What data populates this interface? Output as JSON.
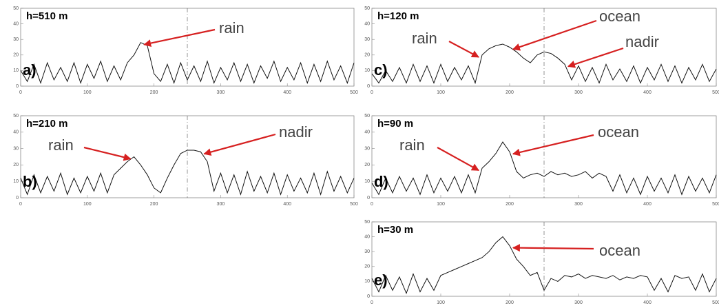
{
  "chart_data": [
    {
      "type": "line",
      "label": "h=510 m",
      "panel_label": "a)",
      "color": "#111",
      "xlim": [
        0,
        500
      ],
      "ylim": [
        0,
        50
      ],
      "xticks": [
        0,
        100,
        200,
        300,
        400,
        500
      ],
      "yticks": [
        0,
        10,
        20,
        30,
        40,
        50
      ],
      "vline": 250,
      "x": [
        0,
        10,
        20,
        30,
        40,
        50,
        60,
        70,
        80,
        90,
        100,
        110,
        120,
        130,
        140,
        150,
        160,
        170,
        180,
        190,
        200,
        210,
        220,
        230,
        240,
        250,
        260,
        270,
        280,
        290,
        300,
        310,
        320,
        330,
        340,
        350,
        360,
        370,
        380,
        390,
        400,
        410,
        420,
        430,
        440,
        450,
        460,
        470,
        480,
        490,
        500
      ],
      "values": [
        10,
        3,
        14,
        2,
        15,
        4,
        12,
        3,
        15,
        2,
        14,
        5,
        16,
        3,
        13,
        4,
        15,
        20,
        28,
        26,
        8,
        3,
        14,
        2,
        15,
        4,
        13,
        3,
        16,
        2,
        12,
        4,
        15,
        3,
        14,
        2,
        13,
        5,
        16,
        3,
        12,
        4,
        15,
        2,
        14,
        3,
        16,
        4,
        13,
        2,
        15
      ],
      "annotations": [
        {
          "text": "rain",
          "x": 180
        }
      ]
    },
    {
      "type": "line",
      "label": "h=210 m",
      "panel_label": "b)",
      "color": "#111",
      "xlim": [
        0,
        500
      ],
      "ylim": [
        0,
        50
      ],
      "xticks": [
        0,
        100,
        200,
        300,
        400,
        500
      ],
      "yticks": [
        0,
        10,
        20,
        30,
        40,
        50
      ],
      "vline": 250,
      "x": [
        0,
        10,
        20,
        30,
        40,
        50,
        60,
        70,
        80,
        90,
        100,
        110,
        120,
        130,
        140,
        150,
        160,
        170,
        180,
        190,
        200,
        210,
        220,
        230,
        240,
        250,
        260,
        270,
        280,
        290,
        300,
        310,
        320,
        330,
        340,
        350,
        360,
        370,
        380,
        390,
        400,
        410,
        420,
        430,
        440,
        450,
        460,
        470,
        480,
        490,
        500
      ],
      "values": [
        12,
        2,
        14,
        3,
        13,
        4,
        15,
        2,
        12,
        3,
        13,
        4,
        15,
        3,
        14,
        18,
        22,
        25,
        20,
        14,
        6,
        3,
        12,
        20,
        27,
        29,
        29,
        28,
        22,
        4,
        15,
        3,
        14,
        2,
        16,
        4,
        13,
        3,
        15,
        2,
        14,
        4,
        12,
        3,
        15,
        2,
        16,
        4,
        13,
        3,
        12
      ],
      "annotations": [
        {
          "text": "rain",
          "x": 170
        },
        {
          "text": "nadir",
          "x": 270
        }
      ]
    },
    {
      "type": "line",
      "label": "h=120 m",
      "panel_label": "c)",
      "color": "#111",
      "xlim": [
        0,
        500
      ],
      "ylim": [
        0,
        50
      ],
      "xticks": [
        0,
        100,
        200,
        300,
        400,
        500
      ],
      "yticks": [
        0,
        10,
        20,
        30,
        40,
        50
      ],
      "vline": 250,
      "x": [
        0,
        10,
        20,
        30,
        40,
        50,
        60,
        70,
        80,
        90,
        100,
        110,
        120,
        130,
        140,
        150,
        160,
        170,
        180,
        190,
        200,
        210,
        220,
        230,
        240,
        250,
        260,
        270,
        280,
        290,
        300,
        310,
        320,
        330,
        340,
        350,
        360,
        370,
        380,
        390,
        400,
        410,
        420,
        430,
        440,
        450,
        460,
        470,
        480,
        490,
        500
      ],
      "values": [
        8,
        2,
        10,
        3,
        12,
        2,
        14,
        3,
        13,
        2,
        14,
        3,
        12,
        4,
        13,
        2,
        20,
        24,
        26,
        27,
        25,
        22,
        18,
        15,
        20,
        22,
        21,
        18,
        14,
        4,
        13,
        3,
        12,
        2,
        14,
        4,
        11,
        3,
        13,
        2,
        12,
        4,
        14,
        3,
        13,
        2,
        12,
        4,
        14,
        3,
        11
      ],
      "annotations": [
        {
          "text": "rain",
          "x": 160
        },
        {
          "text": "ocean",
          "x": 200
        },
        {
          "text": "nadir",
          "x": 280
        }
      ]
    },
    {
      "type": "line",
      "label": "h=90 m",
      "panel_label": "d)",
      "color": "#111",
      "xlim": [
        0,
        500
      ],
      "ylim": [
        0,
        50
      ],
      "xticks": [
        0,
        100,
        200,
        300,
        400,
        500
      ],
      "yticks": [
        0,
        10,
        20,
        30,
        40,
        50
      ],
      "vline": 250,
      "x": [
        0,
        10,
        20,
        30,
        40,
        50,
        60,
        70,
        80,
        90,
        100,
        110,
        120,
        130,
        140,
        150,
        160,
        170,
        180,
        190,
        200,
        210,
        220,
        230,
        240,
        250,
        260,
        270,
        280,
        290,
        300,
        310,
        320,
        330,
        340,
        350,
        360,
        370,
        380,
        390,
        400,
        410,
        420,
        430,
        440,
        450,
        460,
        470,
        480,
        490,
        500
      ],
      "values": [
        9,
        2,
        12,
        3,
        13,
        4,
        12,
        2,
        14,
        3,
        12,
        4,
        13,
        3,
        14,
        3,
        18,
        22,
        27,
        34,
        28,
        16,
        12,
        14,
        15,
        13,
        16,
        14,
        15,
        13,
        14,
        16,
        12,
        15,
        13,
        4,
        14,
        3,
        12,
        2,
        13,
        4,
        12,
        3,
        14,
        2,
        13,
        4,
        12,
        3,
        14
      ],
      "annotations": [
        {
          "text": "rain",
          "x": 160
        },
        {
          "text": "ocean",
          "x": 200
        }
      ]
    },
    {
      "type": "line",
      "label": "h=30 m",
      "panel_label": "e)",
      "color": "#111",
      "xlim": [
        0,
        500
      ],
      "ylim": [
        0,
        50
      ],
      "xticks": [
        0,
        100,
        200,
        300,
        400,
        500
      ],
      "yticks": [
        0,
        10,
        20,
        30,
        40,
        50
      ],
      "vline": 250,
      "x": [
        0,
        10,
        20,
        30,
        40,
        50,
        60,
        70,
        80,
        90,
        100,
        110,
        120,
        130,
        140,
        150,
        160,
        170,
        180,
        190,
        200,
        210,
        220,
        230,
        240,
        250,
        260,
        270,
        280,
        290,
        300,
        310,
        320,
        330,
        340,
        350,
        360,
        370,
        380,
        390,
        400,
        410,
        420,
        430,
        440,
        450,
        460,
        470,
        480,
        490,
        500
      ],
      "values": [
        12,
        3,
        14,
        4,
        13,
        2,
        15,
        3,
        12,
        4,
        14,
        16,
        18,
        20,
        22,
        24,
        26,
        30,
        36,
        40,
        34,
        25,
        20,
        14,
        16,
        4,
        12,
        10,
        14,
        13,
        15,
        12,
        14,
        13,
        12,
        14,
        11,
        13,
        12,
        14,
        13,
        4,
        12,
        3,
        14,
        12,
        13,
        4,
        15,
        3,
        12
      ],
      "annotations": [
        {
          "text": "ocean",
          "x": 200
        }
      ]
    }
  ]
}
